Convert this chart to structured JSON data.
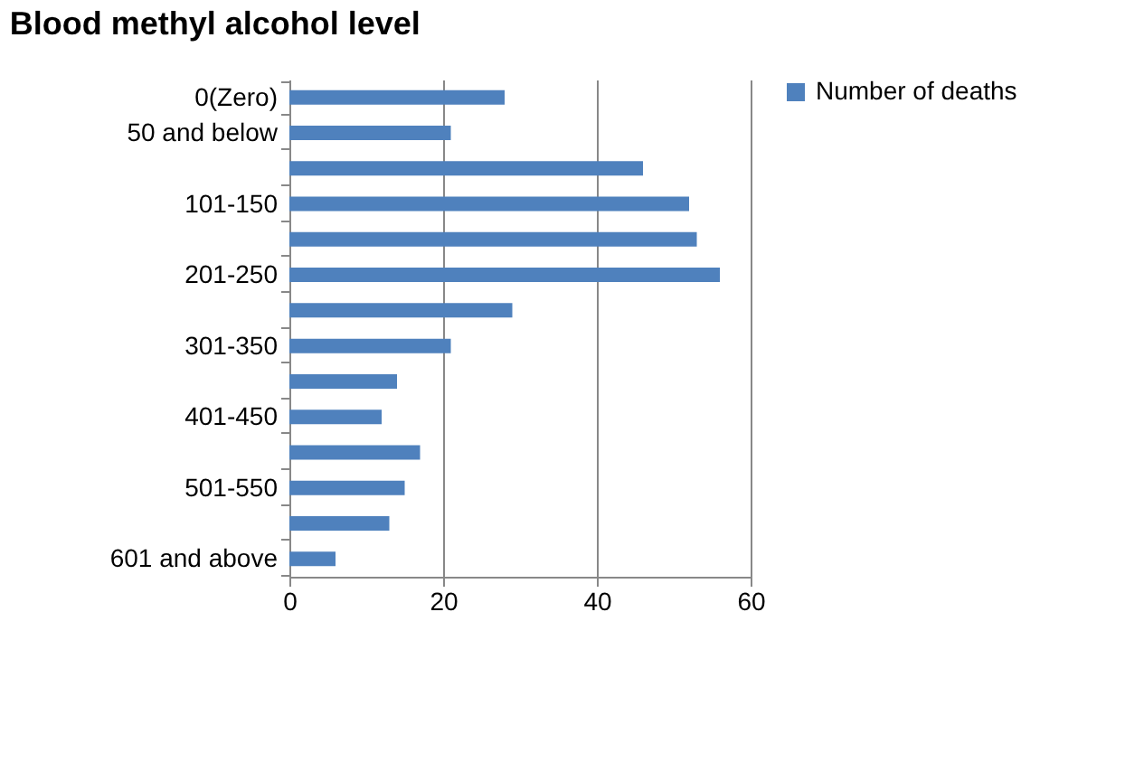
{
  "chart_data": {
    "type": "bar",
    "orientation": "horizontal",
    "title": "Blood methyl alcohol level",
    "categories": [
      "0(Zero)",
      "50 and below",
      null,
      "101-150",
      null,
      "201-250",
      null,
      "301-350",
      null,
      "401-450",
      null,
      "501-550",
      null,
      "601 and above"
    ],
    "series": [
      {
        "name": "Number of deaths",
        "color": "#4f81bd",
        "values": [
          28,
          21,
          46,
          52,
          53,
          56,
          29,
          21,
          14,
          12,
          17,
          15,
          13,
          6
        ]
      }
    ],
    "xlim": [
      0,
      60
    ],
    "xticks": [
      0,
      20,
      40,
      60
    ],
    "grid": "x",
    "legend": "right"
  }
}
